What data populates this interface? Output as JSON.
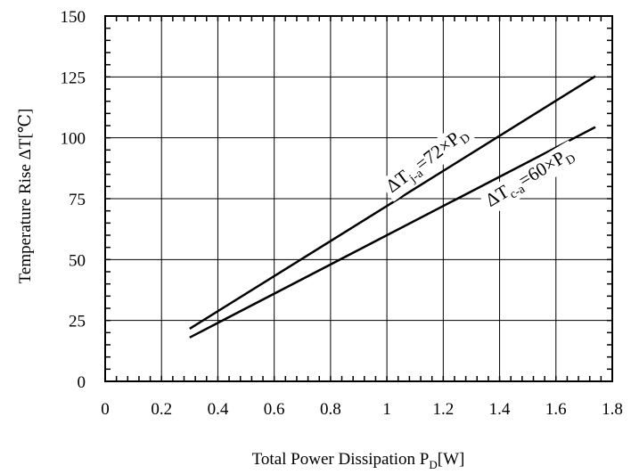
{
  "chart_data": {
    "type": "line",
    "title": "",
    "xlabel": {
      "main": "Total Power Dissipation  P",
      "sub": "D",
      "tail": "[W]"
    },
    "ylabel": "Temperature Rise ΔT[℃]",
    "xlim": [
      0,
      1.8
    ],
    "ylim": [
      0,
      150
    ],
    "x_ticks": [
      0,
      0.2,
      0.4,
      0.6,
      0.8,
      1,
      1.2,
      1.4,
      1.6,
      1.8
    ],
    "x_tick_labels": [
      "0",
      "0.2",
      "0.4",
      "0.6",
      "0.8",
      "1",
      "1.2",
      "1.4",
      "1.6",
      "1.8"
    ],
    "y_ticks": [
      0,
      25,
      50,
      75,
      100,
      125,
      150
    ],
    "y_tick_labels": [
      "0",
      "25",
      "50",
      "75",
      "100",
      "125",
      "150"
    ],
    "grid": true,
    "series": [
      {
        "x": [
          0.3,
          1.74
        ],
        "y": [
          21.6,
          125.3
        ],
        "annotation": {
          "pre": "ΔT",
          "sub": "j-a",
          "post": "=72×P",
          "sub2": "D",
          "at_x": 1.18,
          "angle_deg": -37
        }
      },
      {
        "x": [
          0.3,
          1.74
        ],
        "y": [
          18.0,
          104.4
        ],
        "annotation": {
          "pre": "ΔT",
          "sub": "c-a",
          "post": "=60×P",
          "sub2": "D",
          "at_x": 1.48,
          "angle_deg": -31
        }
      }
    ],
    "colors": {
      "line": "#000000",
      "grid": "#000000",
      "background": "#ffffff"
    }
  }
}
